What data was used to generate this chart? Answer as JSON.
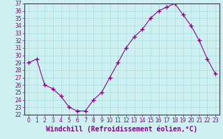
{
  "x": [
    0,
    1,
    2,
    3,
    4,
    5,
    6,
    7,
    8,
    9,
    10,
    11,
    12,
    13,
    14,
    15,
    16,
    17,
    18,
    19,
    20,
    21,
    22,
    23
  ],
  "y": [
    29,
    29.5,
    26,
    25.5,
    24.5,
    23,
    22.5,
    22.5,
    24,
    25,
    27,
    29,
    31,
    32.5,
    33.5,
    35,
    36,
    36.5,
    37,
    35.5,
    34,
    32,
    29.5,
    27.5
  ],
  "line_color": "#8B008B",
  "marker_color": "#8B008B",
  "bg_color": "#cff0f0",
  "grid_color": "#aadddd",
  "xlabel": "Windchill (Refroidissement éolien,°C)",
  "xlim": [
    -0.5,
    23.5
  ],
  "ylim": [
    22,
    37
  ],
  "yticks": [
    22,
    23,
    24,
    25,
    26,
    27,
    28,
    29,
    30,
    31,
    32,
    33,
    34,
    35,
    36,
    37
  ],
  "xticks": [
    0,
    1,
    2,
    3,
    4,
    5,
    6,
    7,
    8,
    9,
    10,
    11,
    12,
    13,
    14,
    15,
    16,
    17,
    18,
    19,
    20,
    21,
    22,
    23
  ],
  "axis_color": "#8B008B",
  "tick_color": "#8B008B",
  "label_color": "#8B008B",
  "tick_fontsize": 5.5,
  "xlabel_fontsize": 7
}
